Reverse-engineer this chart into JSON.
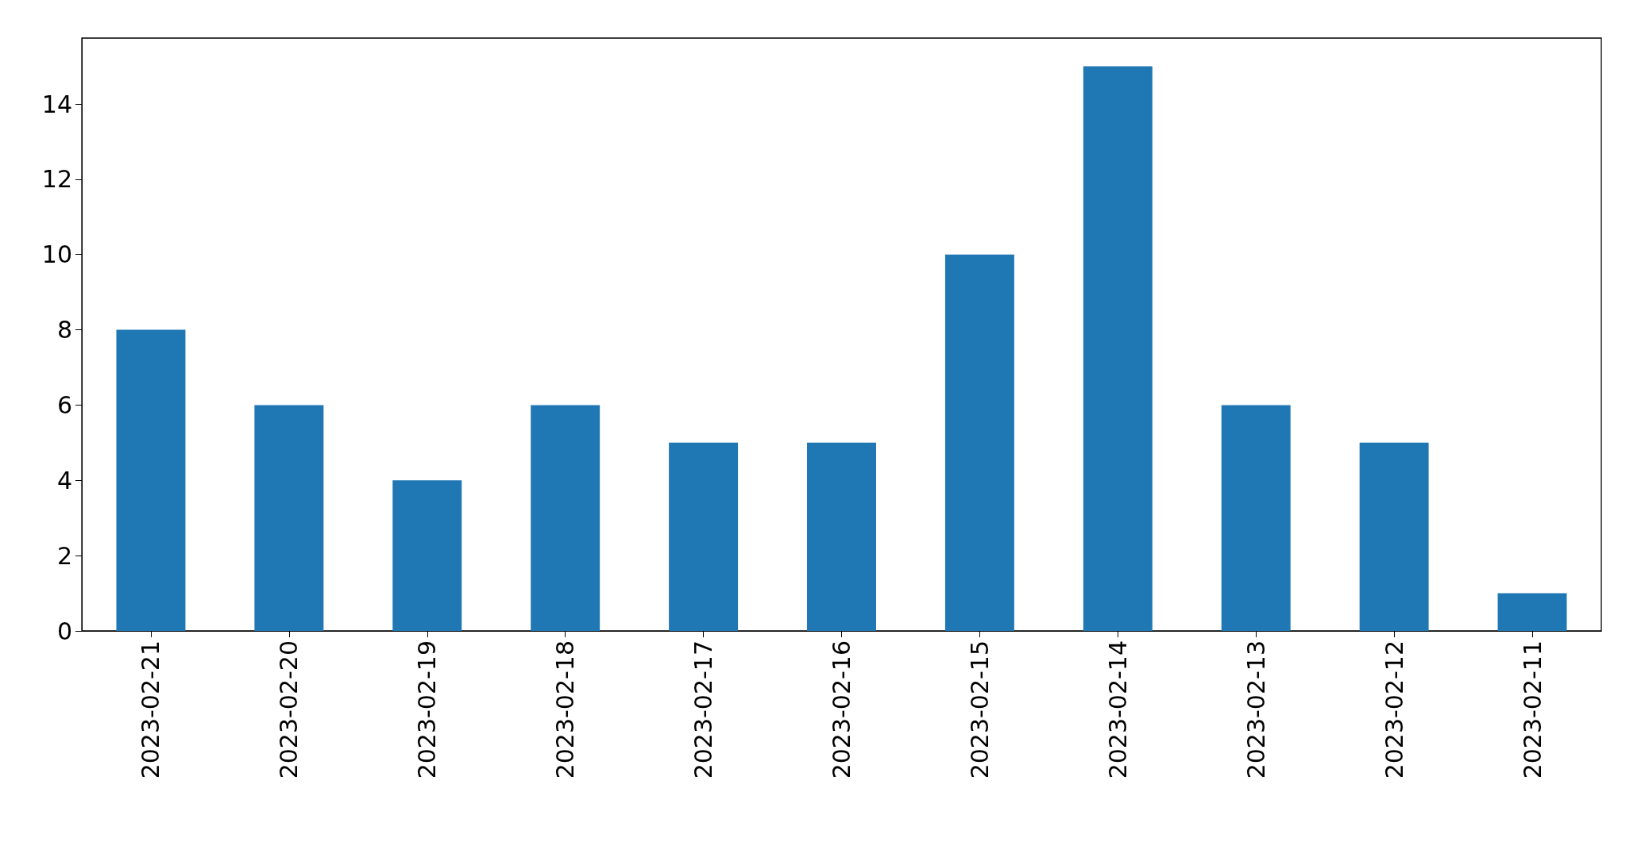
{
  "chart_data": {
    "type": "bar",
    "categories": [
      "2023-02-21",
      "2023-02-20",
      "2023-02-19",
      "2023-02-18",
      "2023-02-17",
      "2023-02-16",
      "2023-02-15",
      "2023-02-14",
      "2023-02-13",
      "2023-02-12",
      "2023-02-11"
    ],
    "values": [
      8,
      6,
      4,
      6,
      5,
      5,
      10,
      15,
      6,
      5,
      1
    ],
    "color": "#1f77b4",
    "ylim": [
      0,
      15.75
    ],
    "yticks": [
      0,
      2,
      4,
      6,
      8,
      10,
      12,
      14
    ],
    "grid": false
  }
}
